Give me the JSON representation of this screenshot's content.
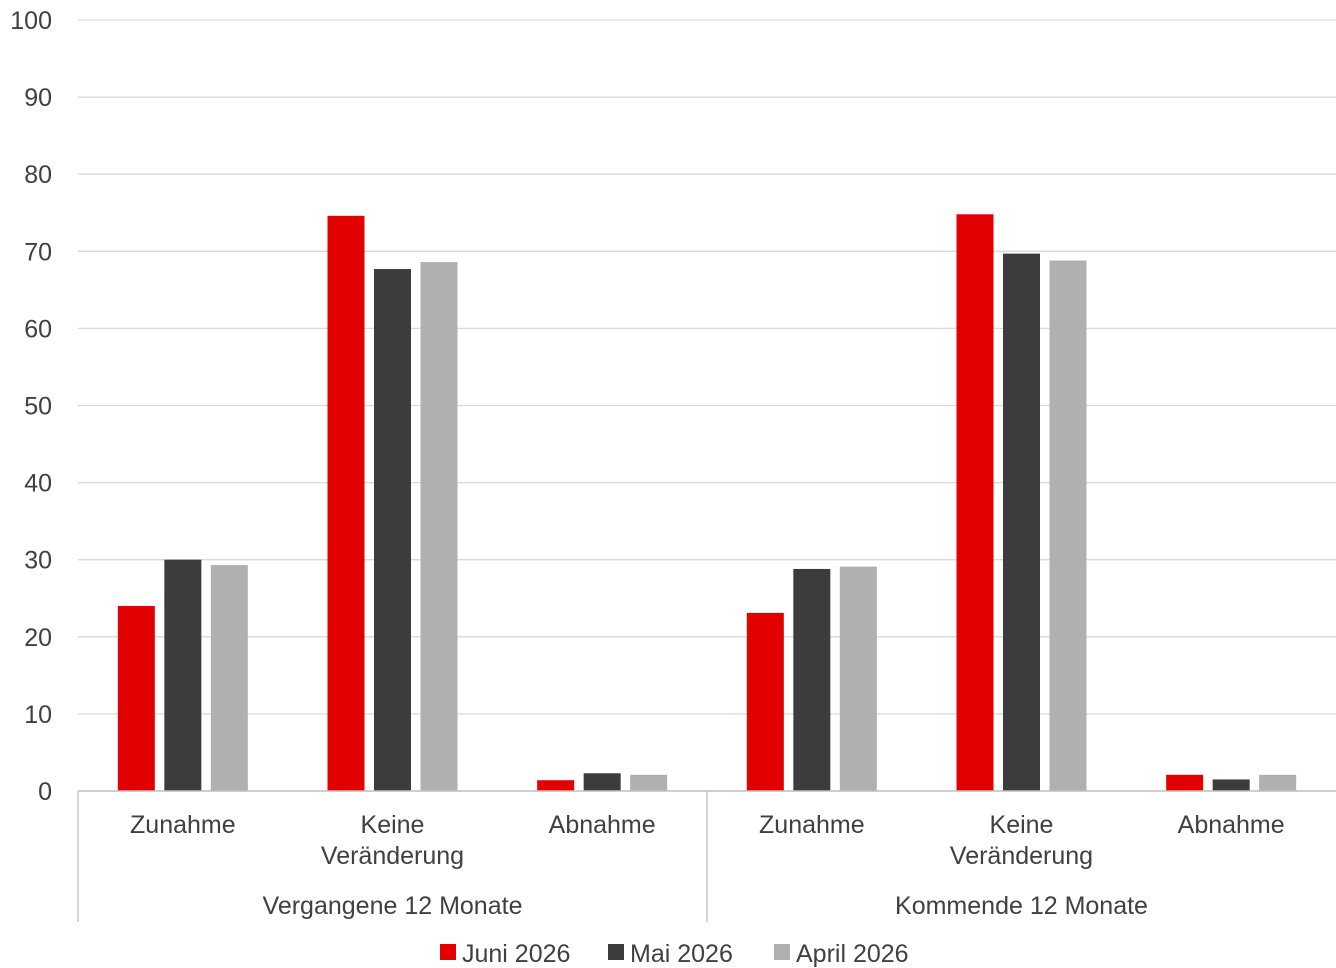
{
  "chart_data": {
    "type": "bar",
    "ylim": [
      0,
      100
    ],
    "yticks": [
      0,
      10,
      20,
      30,
      40,
      50,
      60,
      70,
      80,
      90,
      100
    ],
    "grid": true,
    "legend_position": "bottom",
    "groups": [
      {
        "label": "Vergangene 12 Monate",
        "categories": [
          "Zunahme",
          "Keine Veränderung",
          "Abnahme"
        ]
      },
      {
        "label": "Kommende 12 Monate",
        "categories": [
          "Zunahme",
          "Keine Veränderung",
          "Abnahme"
        ]
      }
    ],
    "categories": [
      "Zunahme",
      "Keine Veränderung",
      "Abnahme",
      "Zunahme",
      "Keine Veränderung",
      "Abnahme"
    ],
    "category_lines": [
      [
        "Zunahme"
      ],
      [
        "Keine",
        "Veränderung"
      ],
      [
        "Abnahme"
      ],
      [
        "Zunahme"
      ],
      [
        "Keine",
        "Veränderung"
      ],
      [
        "Abnahme"
      ]
    ],
    "series": [
      {
        "name": "Juni 2026",
        "color": "#e30000",
        "values": [
          24.0,
          74.6,
          1.4,
          23.1,
          74.8,
          2.1
        ]
      },
      {
        "name": "Mai 2026",
        "color": "#3c3c3c",
        "values": [
          30.0,
          67.7,
          2.3,
          28.8,
          69.7,
          1.5
        ]
      },
      {
        "name": "April 2026",
        "color": "#b0b0b0",
        "values": [
          29.3,
          68.6,
          2.1,
          29.1,
          68.8,
          2.1
        ]
      }
    ]
  }
}
